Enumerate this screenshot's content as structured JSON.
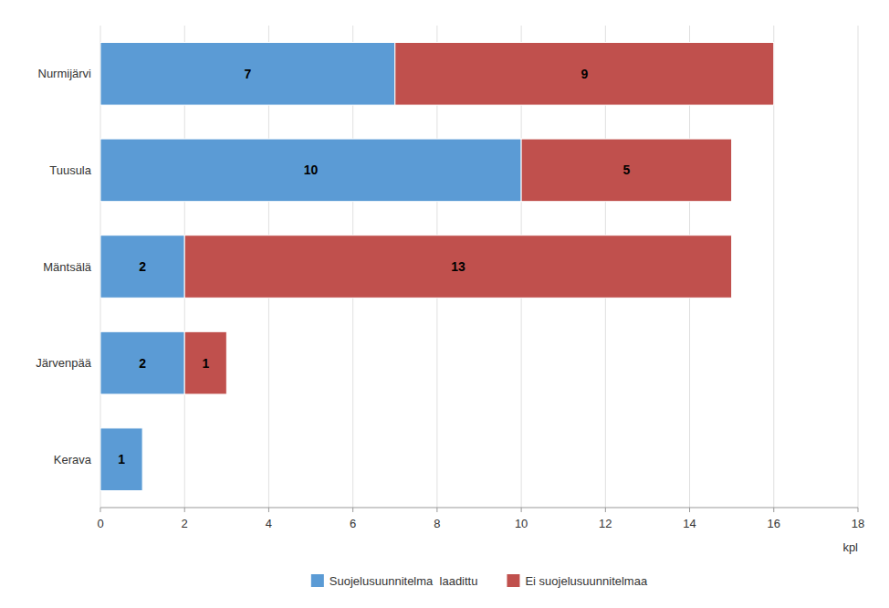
{
  "chart_data": {
    "type": "bar",
    "orientation": "horizontal",
    "stacked": true,
    "categories": [
      "Nurmijärvi",
      "Tuusula",
      "Mäntsälä",
      "Järvenpää",
      "Kerava"
    ],
    "series": [
      {
        "name": "Suojelusuunnitelma  laadittu",
        "color": "#5b9bd5",
        "values": [
          7,
          10,
          2,
          2,
          1
        ]
      },
      {
        "name": "Ei suojelusuunnitelmaa",
        "color": "#c0504d",
        "values": [
          9,
          5,
          13,
          1,
          0
        ]
      }
    ],
    "xlabel": "kpl",
    "xlim": [
      0,
      18
    ],
    "xticks": [
      0,
      2,
      4,
      6,
      8,
      10,
      12,
      14,
      16,
      18
    ],
    "grid": true,
    "legend": "bottom",
    "data_labels": true
  }
}
